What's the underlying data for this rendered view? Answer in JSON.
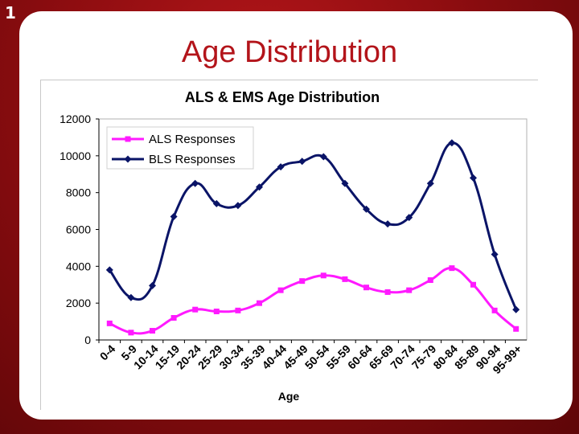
{
  "slide": {
    "number": "1",
    "title": "Age Distribution"
  },
  "colors": {
    "background": "#8e0d10",
    "title": "#b3141a",
    "als": "#ff1aff",
    "bls": "#0a1467"
  },
  "chart_data": {
    "type": "line",
    "title": "ALS & EMS Age Distribution",
    "xlabel": "Age",
    "ylabel": "",
    "ylim": [
      0,
      12000
    ],
    "yticks": [
      0,
      2000,
      4000,
      6000,
      8000,
      10000,
      12000
    ],
    "grid": false,
    "legend_position": "top-left",
    "categories": [
      "0-4",
      "5-9",
      "10-14",
      "15-19",
      "20-24",
      "25-29",
      "30-34",
      "35-39",
      "40-44",
      "45-49",
      "50-54",
      "55-59",
      "60-64",
      "65-69",
      "70-74",
      "75-79",
      "80-84",
      "85-89",
      "90-94",
      "95-99+"
    ],
    "series": [
      {
        "name": "ALS Responses",
        "color": "#ff1aff",
        "marker": "square",
        "values": [
          900,
          400,
          500,
          1200,
          1650,
          1550,
          1600,
          2000,
          2700,
          3200,
          3500,
          3300,
          2850,
          2600,
          2700,
          3250,
          3900,
          3000,
          1600,
          600
        ]
      },
      {
        "name": "BLS Responses",
        "color": "#0a1467",
        "marker": "diamond",
        "values": [
          3800,
          2300,
          2950,
          6700,
          8500,
          7400,
          7300,
          8300,
          9400,
          9700,
          9950,
          8500,
          7100,
          6300,
          6650,
          8500,
          10700,
          8800,
          4650,
          1650
        ]
      }
    ]
  }
}
